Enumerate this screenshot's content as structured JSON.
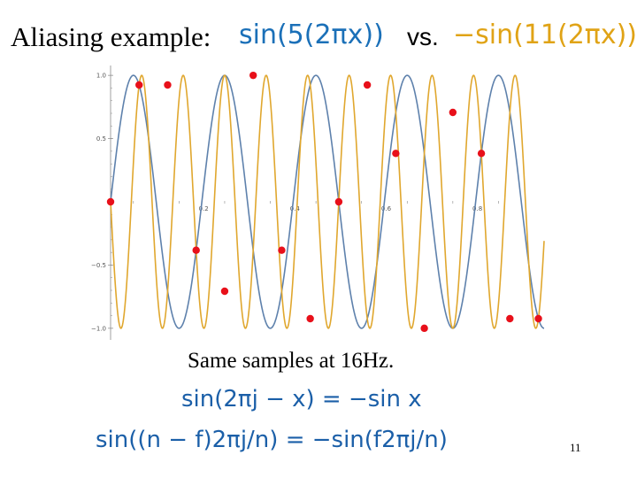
{
  "slide": {
    "title_prefix": "Aliasing example:",
    "eq_blue": "sin(5(2πx))",
    "vs": "vs.",
    "eq_orange": "−sin(11(2πx))",
    "subtitle": "Same samples at 16Hz.",
    "formula1": "sin(2πj − x) = −sin x",
    "formula2": "sin((n − f)2πj/n) = −sin(f2πj/n)",
    "page_number": "11"
  },
  "colors": {
    "blue_curve": "#5e81ac",
    "orange_curve": "#e0a72e",
    "sample_points": "#e8101a",
    "axis": "#888888",
    "blue_text": "#1b70b8",
    "orange_text": "#e0a316"
  },
  "chart_data": {
    "type": "line",
    "series": [
      {
        "name": "sin(5(2πx))",
        "frequency": 5,
        "sign": 1,
        "color": "#5e81ac"
      },
      {
        "name": "−sin(11(2πx))",
        "frequency": 11,
        "sign": -1,
        "color": "#e0a72e"
      }
    ],
    "samples": {
      "rate_hz": 16,
      "x": [
        0,
        0.0625,
        0.125,
        0.1875,
        0.25,
        0.3125,
        0.375,
        0.4375,
        0.5,
        0.5625,
        0.625,
        0.6875,
        0.75,
        0.8125,
        0.875,
        0.9375
      ],
      "y": [
        0,
        0.924,
        0.924,
        -0.383,
        -0.707,
        1.0,
        -0.383,
        -0.924,
        0,
        0.924,
        0.383,
        -1.0,
        0.707,
        0.383,
        -0.924,
        -0.924
      ]
    },
    "xlim": [
      0,
      0.95
    ],
    "ylim": [
      -1.05,
      1.05
    ],
    "x_ticks": [
      0.2,
      0.4,
      0.6,
      0.8
    ],
    "x_tick_labels": [
      "0.2",
      "0.4",
      "0.6",
      "0.8"
    ],
    "y_ticks": [
      1.0,
      0.5,
      -0.5,
      -1.0
    ],
    "y_tick_labels": [
      "1.0",
      "0.5",
      "−0.5",
      "−1.0"
    ],
    "grid": false,
    "legend": "none"
  }
}
